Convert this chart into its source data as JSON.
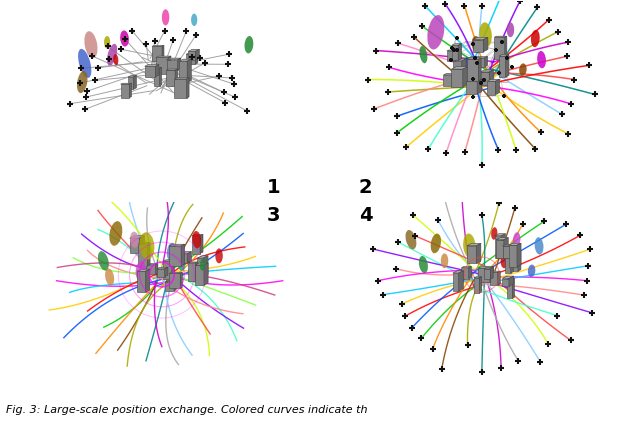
{
  "figure_width": 6.4,
  "figure_height": 4.35,
  "dpi": 100,
  "panel_labels": [
    "1",
    "2",
    "3",
    "4"
  ],
  "caption": "Fig. 3: Large-scale position exchange. Colored curves indicate th",
  "caption_fontsize": 8.0,
  "panel_border_color": "#000000",
  "panel_border_lw": 1.0,
  "background_color": "#ffffff",
  "label_fontsize": 14,
  "label_color": "#000000",
  "line_colors_p2": [
    "#ff00ff",
    "#00ccff",
    "#ffcc00",
    "#ff0000",
    "#0055ff",
    "#00cc00",
    "#ff8800",
    "#884400",
    "#aaaa00",
    "#008888",
    "#cc00cc",
    "#ff88cc",
    "#88ccff",
    "#ccff00",
    "#ff4444",
    "#44ffcc",
    "#8800ff",
    "#ff8888"
  ],
  "line_colors_p3": [
    "#ff00ff",
    "#00ccff",
    "#ffcc00",
    "#ff0000",
    "#0055ff",
    "#00cc00",
    "#ff8800",
    "#884400",
    "#aaaa00",
    "#008888",
    "#cc00cc",
    "#aaaaaa",
    "#88ccff",
    "#ccff00",
    "#ff4444",
    "#44ffcc",
    "#8800ff",
    "#ff8888",
    "#88ff44",
    "#cc4488"
  ],
  "line_colors_p4": [
    "#ff00ff",
    "#00ccff",
    "#ffcc00",
    "#ff0000",
    "#0055ff",
    "#00cc00",
    "#ff8800",
    "#884400",
    "#aaaa00",
    "#008888",
    "#cc00cc",
    "#aaaaaa",
    "#88ccff",
    "#ccff00",
    "#ff4444",
    "#44ffcc",
    "#8800ff",
    "#ff8888"
  ],
  "drone_color": "#000000",
  "building_face_color": "#888888",
  "building_top_color": "#aaaaaa",
  "building_side_color": "#666666",
  "building_edge_color": "#444444"
}
